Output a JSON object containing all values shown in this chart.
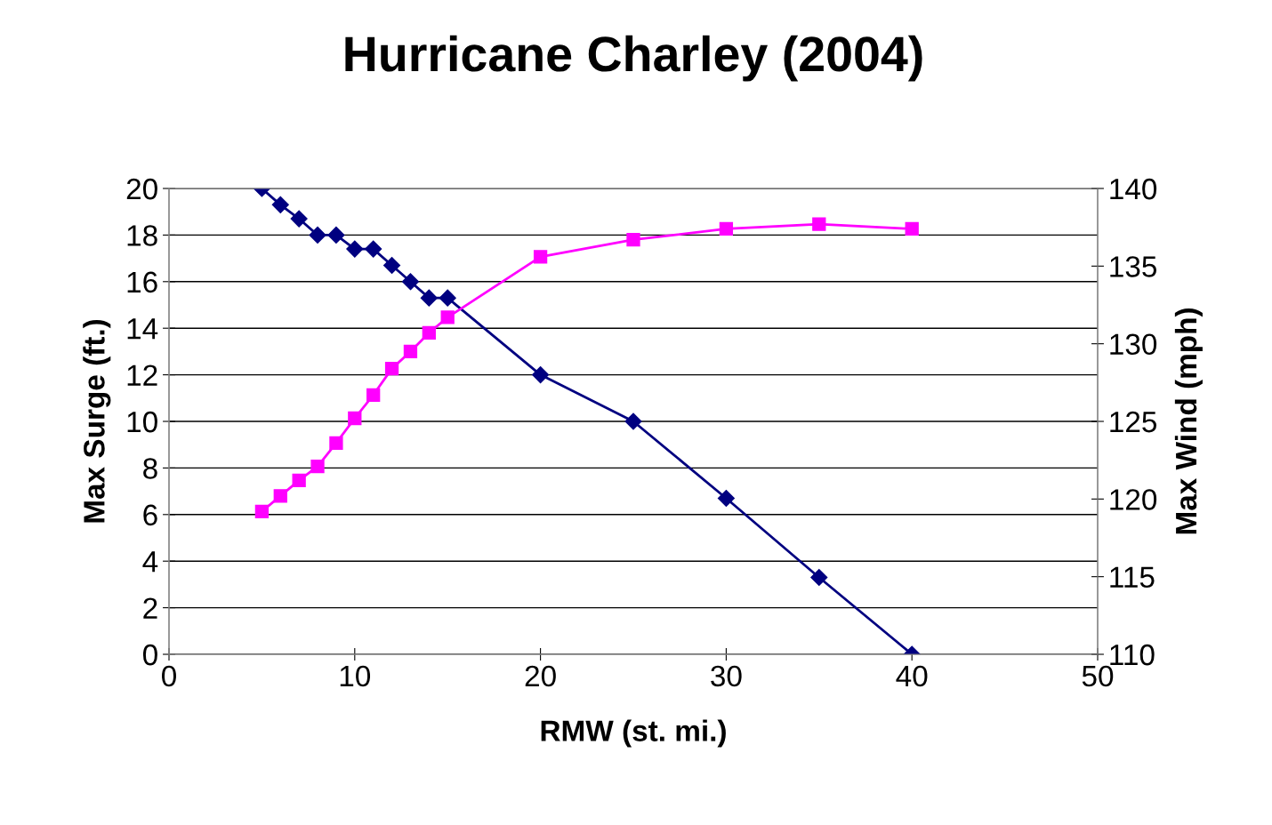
{
  "chart_data": {
    "type": "line",
    "title": "Hurricane Charley (2004)",
    "xlabel": "RMW (st. mi.)",
    "ylabel": "Max Surge (ft.)",
    "y2label": "Max Wind (mph)",
    "x": [
      5,
      6,
      7,
      8,
      9,
      10,
      11,
      12,
      13,
      14,
      15,
      20,
      25,
      30,
      35,
      40
    ],
    "series": [
      {
        "color": "#000080",
        "marker": "diamond",
        "values": [
          20,
          19.3,
          18.7,
          18,
          18,
          17.4,
          17.4,
          16.7,
          16,
          15.3,
          15.3,
          12,
          10,
          6.7,
          3.3,
          0
        ]
      },
      {
        "color": "#ff00ff",
        "marker": "square",
        "axis": "y2",
        "values": [
          119.2,
          120.2,
          121.2,
          122.1,
          123.6,
          125.2,
          126.7,
          128.4,
          129.5,
          130.7,
          131.7,
          135.6,
          136.7,
          137.4,
          137.7,
          137.4
        ]
      }
    ],
    "xlim": [
      0,
      50
    ],
    "xticks": [
      0,
      10,
      20,
      30,
      40,
      50
    ],
    "ylim": [
      0,
      20
    ],
    "yticks": [
      0,
      2,
      4,
      6,
      8,
      10,
      12,
      14,
      16,
      18,
      20
    ],
    "y2lim": [
      110,
      140
    ],
    "y2ticks": [
      110,
      115,
      120,
      125,
      130,
      135,
      140
    ],
    "grid": "y",
    "legend": false
  }
}
